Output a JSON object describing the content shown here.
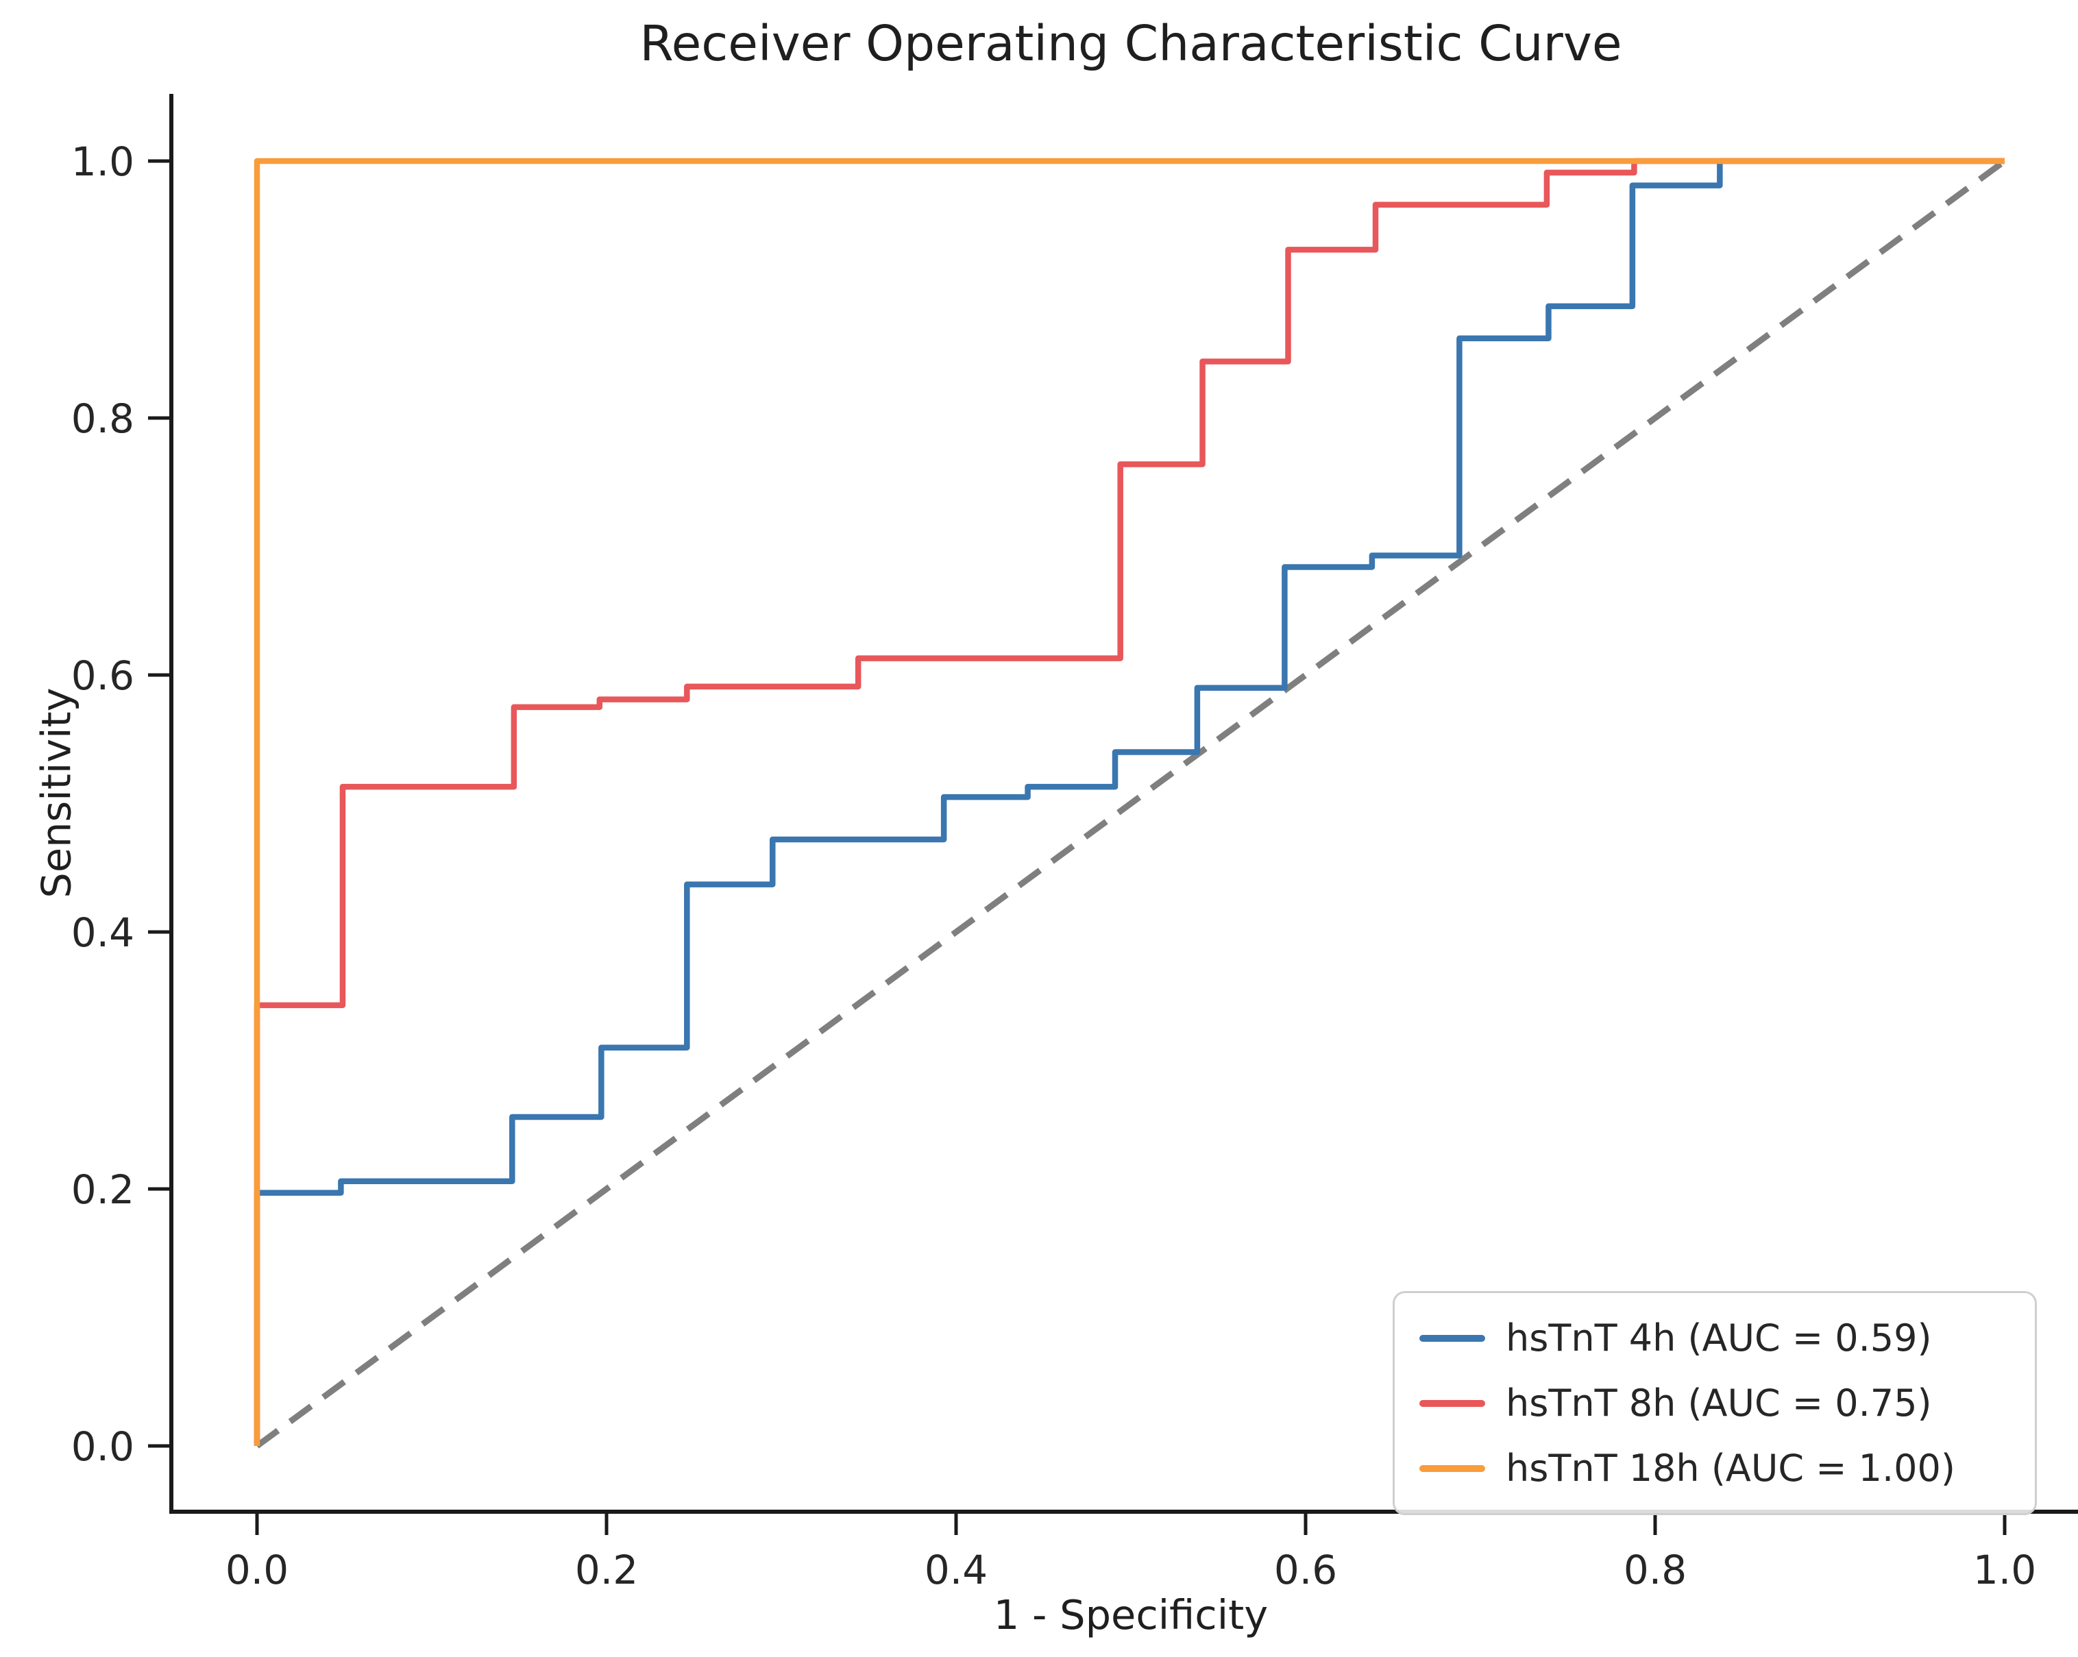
{
  "chart_data": {
    "type": "line",
    "title": "Receiver Operating Characteristic Curve",
    "xlabel": "1 - Specificity",
    "ylabel": "Sensitivity",
    "xlim": [
      -0.05,
      1.05
    ],
    "ylim": [
      -0.05,
      1.05
    ],
    "grid": false,
    "legend_position": "lower right",
    "xtick_labels": [
      "0.0",
      "0.2",
      "0.4",
      "0.6",
      "0.8",
      "1.0"
    ],
    "ytick_labels": [
      "0.0",
      "0.2",
      "0.4",
      "0.6",
      "0.8",
      "1.0"
    ],
    "reference_line": {
      "style": "dashed",
      "color": "#7f7f7f",
      "points": [
        [
          0,
          0
        ],
        [
          1,
          1
        ]
      ]
    },
    "series": [
      {
        "name": "hsTnT 4h (AUC = 0.59)",
        "auc": 0.59,
        "color": "#3a76af",
        "points": [
          [
            0,
            0
          ],
          [
            0,
            0.197
          ],
          [
            0.048,
            0.197
          ],
          [
            0.048,
            0.206
          ],
          [
            0.146,
            0.206
          ],
          [
            0.146,
            0.256
          ],
          [
            0.197,
            0.256
          ],
          [
            0.197,
            0.31
          ],
          [
            0.246,
            0.31
          ],
          [
            0.246,
            0.437
          ],
          [
            0.295,
            0.437
          ],
          [
            0.295,
            0.472
          ],
          [
            0.393,
            0.472
          ],
          [
            0.393,
            0.505
          ],
          [
            0.441,
            0.505
          ],
          [
            0.441,
            0.513
          ],
          [
            0.491,
            0.513
          ],
          [
            0.491,
            0.54
          ],
          [
            0.538,
            0.54
          ],
          [
            0.538,
            0.59
          ],
          [
            0.588,
            0.59
          ],
          [
            0.588,
            0.684
          ],
          [
            0.638,
            0.684
          ],
          [
            0.638,
            0.693
          ],
          [
            0.688,
            0.693
          ],
          [
            0.688,
            0.862
          ],
          [
            0.739,
            0.862
          ],
          [
            0.739,
            0.887
          ],
          [
            0.787,
            0.887
          ],
          [
            0.787,
            0.981
          ],
          [
            0.837,
            0.981
          ],
          [
            0.837,
            1.0
          ],
          [
            1,
            1
          ]
        ]
      },
      {
        "name": "hsTnT 8h (AUC = 0.75)",
        "auc": 0.75,
        "color": "#e8575a",
        "points": [
          [
            0,
            0
          ],
          [
            0,
            0.343
          ],
          [
            0.049,
            0.343
          ],
          [
            0.049,
            0.513
          ],
          [
            0.147,
            0.513
          ],
          [
            0.147,
            0.575
          ],
          [
            0.196,
            0.575
          ],
          [
            0.196,
            0.581
          ],
          [
            0.246,
            0.581
          ],
          [
            0.246,
            0.591
          ],
          [
            0.344,
            0.591
          ],
          [
            0.344,
            0.613
          ],
          [
            0.494,
            0.613
          ],
          [
            0.494,
            0.764
          ],
          [
            0.541,
            0.764
          ],
          [
            0.541,
            0.844
          ],
          [
            0.59,
            0.844
          ],
          [
            0.59,
            0.931
          ],
          [
            0.64,
            0.931
          ],
          [
            0.64,
            0.966
          ],
          [
            0.738,
            0.966
          ],
          [
            0.738,
            0.991
          ],
          [
            0.788,
            0.991
          ],
          [
            0.788,
            1.0
          ],
          [
            1,
            1
          ]
        ]
      },
      {
        "name": "hsTnT 18h (AUC = 1.00)",
        "auc": 1.0,
        "color": "#f99c3b",
        "points": [
          [
            0,
            0
          ],
          [
            0,
            1
          ],
          [
            1,
            1
          ]
        ]
      }
    ]
  }
}
